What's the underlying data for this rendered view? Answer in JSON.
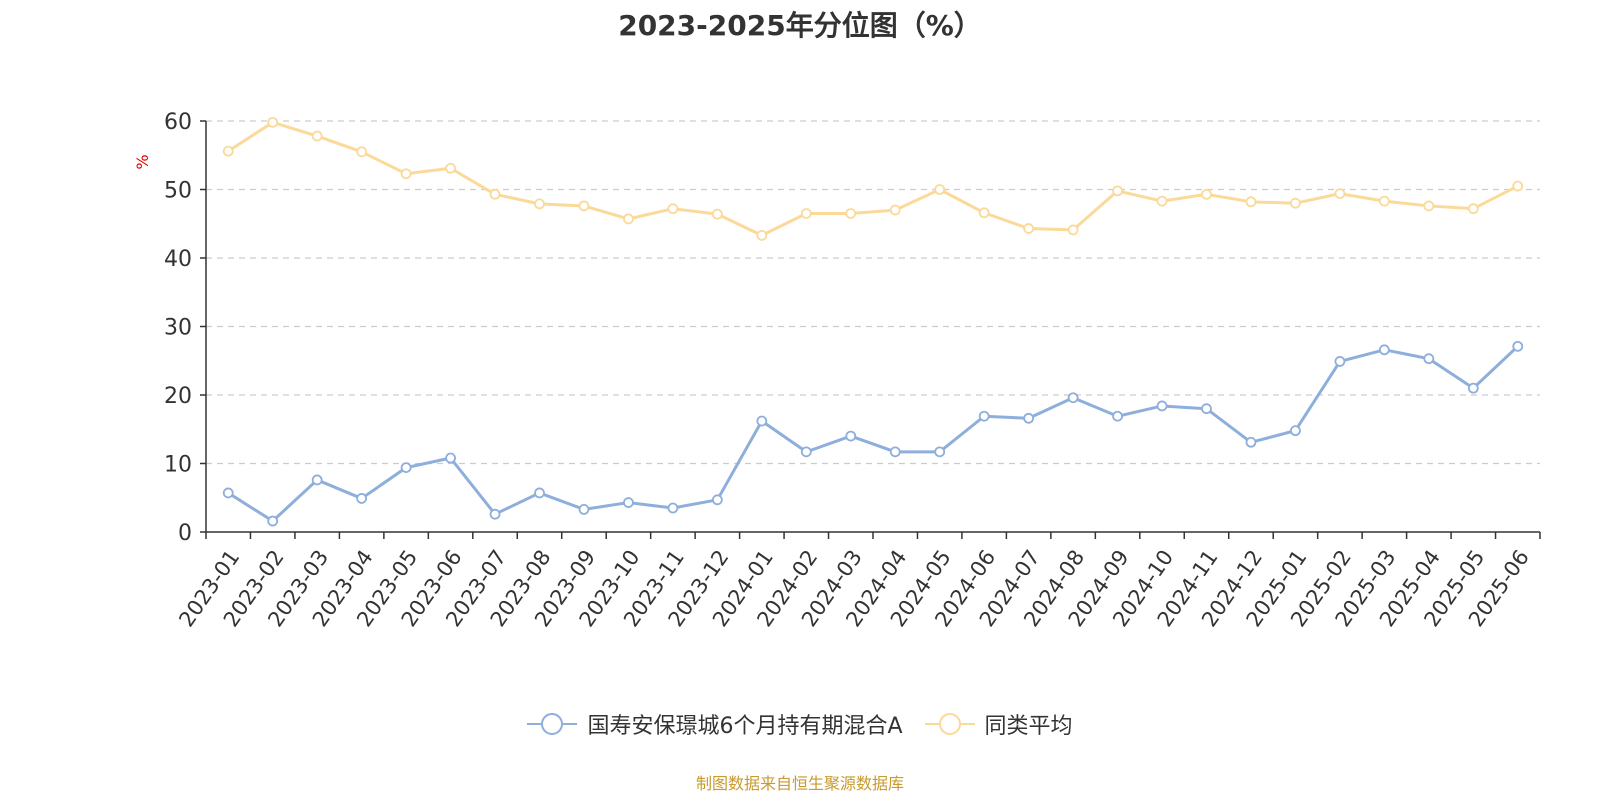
{
  "chart_data": {
    "type": "line",
    "title": "2023-2025年分位图（%）",
    "ylabel": "%",
    "xlabel": "",
    "ylim": [
      0,
      60
    ],
    "yticks": [
      0,
      10,
      20,
      30,
      40,
      50,
      60
    ],
    "grid": true,
    "legend_position": "bottom-center",
    "categories": [
      "2023-01",
      "2023-02",
      "2023-03",
      "2023-04",
      "2023-05",
      "2023-06",
      "2023-07",
      "2023-08",
      "2023-09",
      "2023-10",
      "2023-11",
      "2023-12",
      "2024-01",
      "2024-02",
      "2024-03",
      "2024-04",
      "2024-05",
      "2024-06",
      "2024-07",
      "2024-08",
      "2024-09",
      "2024-10",
      "2024-11",
      "2024-12",
      "2025-01",
      "2025-02",
      "2025-03",
      "2025-04",
      "2025-05",
      "2025-06"
    ],
    "series": [
      {
        "name": "国寿安保璟城6个月持有期混合A",
        "color": "#8eaedc",
        "values": [
          5.7,
          1.6,
          7.6,
          4.9,
          9.4,
          10.8,
          2.6,
          5.7,
          3.3,
          4.3,
          3.5,
          4.7,
          16.2,
          11.7,
          14.0,
          11.7,
          11.7,
          16.9,
          16.6,
          19.6,
          16.9,
          18.4,
          18.0,
          13.1,
          14.8,
          24.9,
          26.6,
          25.3,
          21.0,
          27.1
        ]
      },
      {
        "name": "同类平均",
        "color": "#fbd999",
        "values": [
          55.6,
          59.8,
          57.8,
          55.5,
          52.3,
          53.1,
          49.3,
          47.9,
          47.6,
          45.7,
          47.2,
          46.4,
          43.3,
          46.5,
          46.5,
          47.0,
          50.0,
          46.6,
          44.3,
          44.1,
          49.8,
          48.3,
          49.3,
          48.2,
          48.0,
          49.4,
          48.3,
          47.6,
          47.2,
          50.5
        ]
      }
    ]
  },
  "colors": {
    "axis": "#333333",
    "grid": "#cccccc",
    "ylabel": "#e60000",
    "source": "#c99a2e"
  },
  "source_text": "制图数据来自恒生聚源数据库"
}
